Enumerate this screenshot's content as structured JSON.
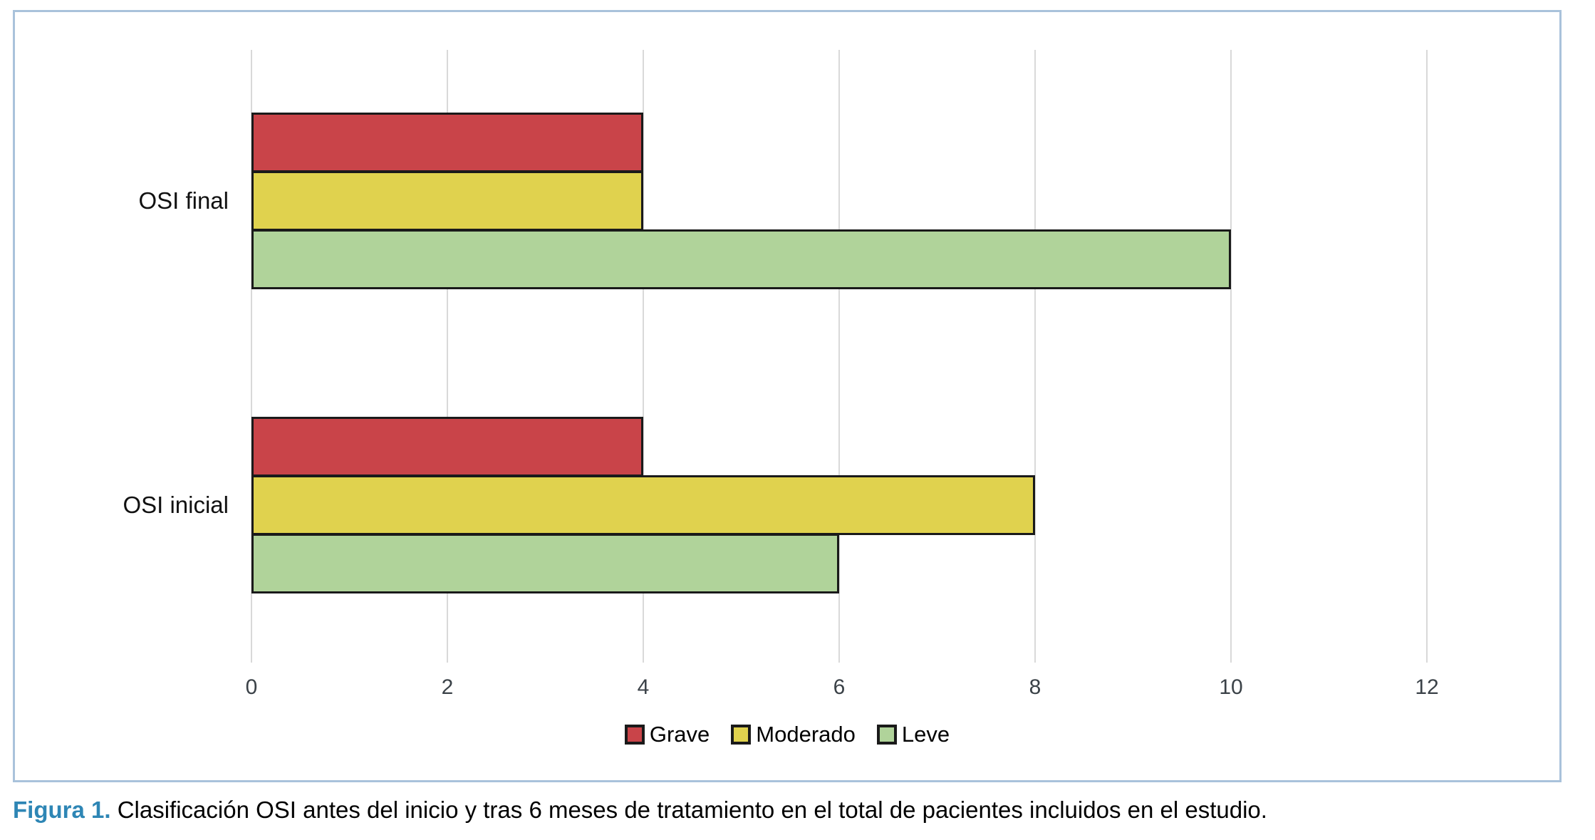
{
  "figure": {
    "caption_label": "Figura 1.",
    "caption_text": "Clasificación OSI antes del inicio y tras 6 meses de tratamiento en el total de pacientes incluidos en el estudio."
  },
  "colors": {
    "grave": "#C94449",
    "moderado": "#E0D24E",
    "leve": "#B0D39A",
    "bar_border": "#1A1A1A",
    "gridline": "#D9D9D9",
    "card_border": "#A9C2DB",
    "tick_text": "#3B4248",
    "caption_accent": "#2E86B5"
  },
  "chart_data": {
    "type": "bar",
    "orientation": "horizontal",
    "title": "",
    "xlabel": "",
    "ylabel": "",
    "categories": [
      "OSI final",
      "OSI inicial"
    ],
    "series": [
      {
        "name": "Grave",
        "color": "#C94449",
        "values": [
          4,
          4
        ]
      },
      {
        "name": "Moderado",
        "color": "#E0D24E",
        "values": [
          4,
          8
        ]
      },
      {
        "name": "Leve",
        "color": "#B0D39A",
        "values": [
          10,
          6
        ]
      }
    ],
    "xlim": [
      0,
      13
    ],
    "xticks": [
      0,
      2,
      4,
      6,
      8,
      10,
      12
    ],
    "grid": true,
    "legend_position": "bottom",
    "legend_labels": [
      "Grave",
      "Moderado",
      "Leve"
    ]
  }
}
